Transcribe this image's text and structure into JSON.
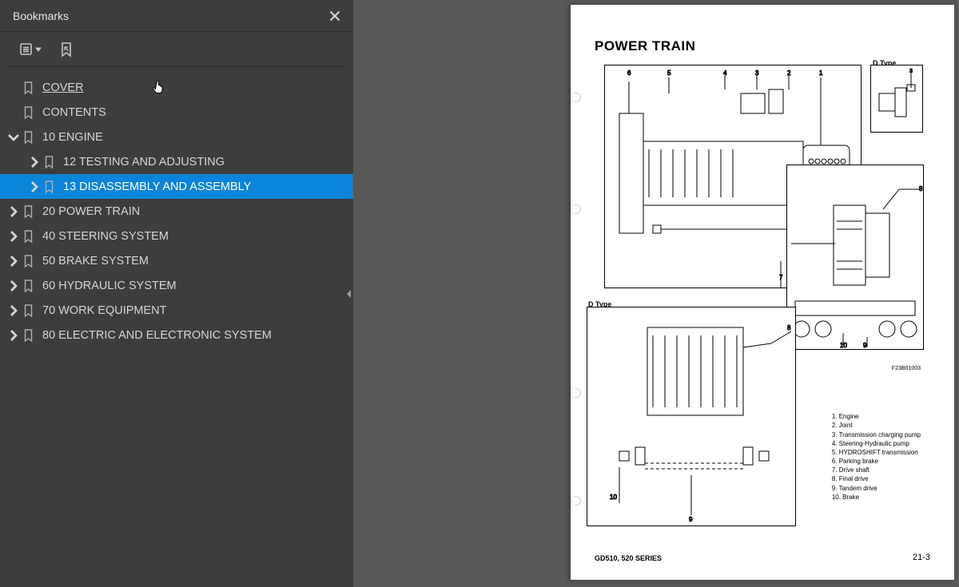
{
  "sidebar": {
    "title": "Bookmarks",
    "tree": [
      {
        "label": "COVER",
        "depth": 0,
        "expandable": false,
        "hovered": true
      },
      {
        "label": "CONTENTS",
        "depth": 0,
        "expandable": false
      },
      {
        "label": "10 ENGINE",
        "depth": 0,
        "expandable": true,
        "expanded": true
      },
      {
        "label": "12 TESTING AND ADJUSTING",
        "depth": 1,
        "expandable": true
      },
      {
        "label": "13 DISASSEMBLY AND ASSEMBLY",
        "depth": 1,
        "expandable": true,
        "selected": true
      },
      {
        "label": "20 POWER TRAIN",
        "depth": 0,
        "expandable": true
      },
      {
        "label": "40 STEERING SYSTEM",
        "depth": 0,
        "expandable": true
      },
      {
        "label": "50 BRAKE SYSTEM",
        "depth": 0,
        "expandable": true
      },
      {
        "label": "60 HYDRAULIC SYSTEM",
        "depth": 0,
        "expandable": true
      },
      {
        "label": "70 WORK EQUIPMENT",
        "depth": 0,
        "expandable": true
      },
      {
        "label": "80 ELECTRIC AND ELECTRONIC SYSTEM",
        "depth": 0,
        "expandable": true
      }
    ]
  },
  "document": {
    "page_title": "POWER TRAIN",
    "dtype_label": "D Type",
    "fig_ref": "F23B01003",
    "legend": [
      "1. Engine",
      "2. Joint",
      "3. Transmission charging pump",
      "4. Steering-Hydraulic pump",
      "5. HYDROSHIFT transmission",
      "6. Parking brake",
      "7. Drive shaft",
      "8. Final drive",
      "9. Tandem drive",
      "10. Brake"
    ],
    "footer_left": "GD510, 520 SERIES",
    "footer_right": "21-3"
  },
  "style": {
    "sidebar_bg": "#3d3d3d",
    "selected_bg": "#0a84d9",
    "text_primary": "#d6d6d6"
  }
}
